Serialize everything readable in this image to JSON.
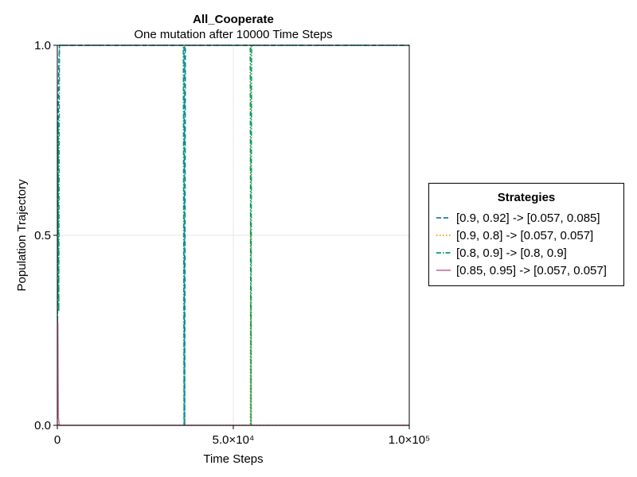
{
  "chart_data": {
    "type": "line",
    "title": "All_Cooperate",
    "subtitle": "One mutation after 10000 Time Steps",
    "xlabel": "Time Steps",
    "ylabel": "Population Trajectory",
    "xlim": [
      0,
      100000
    ],
    "ylim": [
      0,
      1
    ],
    "xticks": [
      0,
      50000,
      100000
    ],
    "xtick_labels": [
      "0",
      "5.0×10⁴",
      "1.0×10⁵"
    ],
    "yticks": [
      0,
      0.5,
      1
    ],
    "ytick_labels": [
      "0.0",
      "0.5",
      "1.0"
    ],
    "grid": true,
    "legend": {
      "title": "Strategies",
      "placement": "right"
    },
    "series": [
      {
        "name": "[0.9, 0.92] -> [0.057, 0.085]",
        "color": "#1f78b4",
        "dash": "dashed",
        "x": [
          0,
          200,
          400,
          600,
          36000,
          36200,
          36400,
          55000,
          100000
        ],
        "y": [
          0.05,
          0.75,
          0.95,
          1,
          1,
          0.0,
          1,
          1,
          1
        ]
      },
      {
        "name": "[0.9, 0.8] -> [0.057, 0.057]",
        "color": "#e69f00",
        "dash": "dotted",
        "x": [
          0,
          200,
          400,
          54800,
          55000,
          55200,
          100000
        ],
        "y": [
          0.02,
          0.1,
          0,
          0,
          1,
          0,
          0
        ]
      },
      {
        "name": "[0.8, 0.9] -> [0.8, 0.9]",
        "color": "#009e73",
        "dash": "dashdot",
        "x": [
          0,
          200,
          400,
          600,
          35800,
          36000,
          36200,
          54800,
          55000,
          55200,
          100000
        ],
        "y": [
          0.1,
          0.8,
          0.3,
          1,
          1,
          0,
          1,
          1,
          0,
          1,
          1
        ]
      },
      {
        "name": "[0.85, 0.95] -> [0.057, 0.057]",
        "color": "#cc79a7",
        "dash": "solid",
        "x": [
          0,
          150,
          300,
          600,
          100000
        ],
        "y": [
          0.1,
          0.27,
          0.02,
          0,
          0
        ]
      }
    ]
  }
}
